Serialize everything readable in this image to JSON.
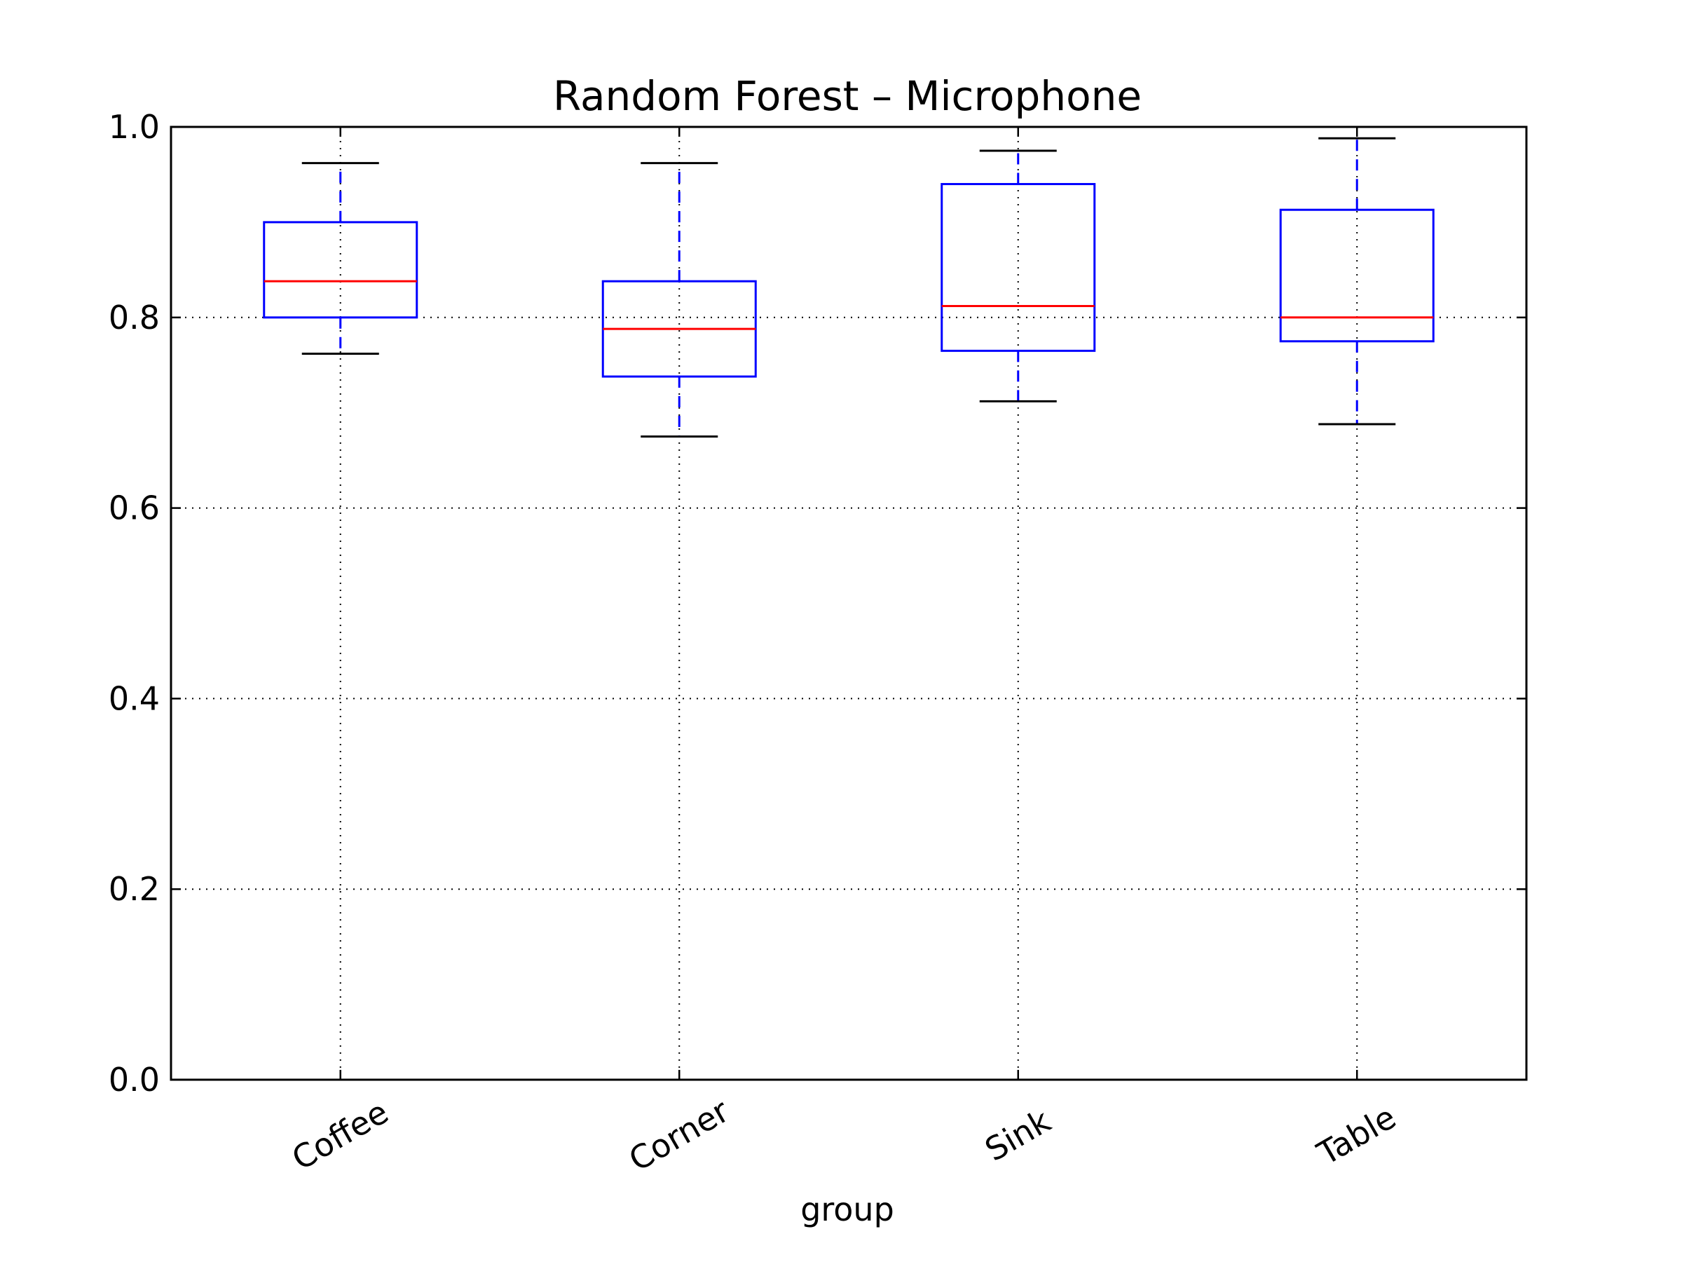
{
  "chart_data": {
    "type": "box",
    "title": "Random Forest – Microphone",
    "xlabel": "group",
    "ylabel": "",
    "ylim": [
      0.0,
      1.0
    ],
    "yticks": [
      "0.0",
      "0.2",
      "0.4",
      "0.6",
      "0.8",
      "1.0"
    ],
    "grid": true,
    "categories": [
      "Coffee",
      "Corner",
      "Sink",
      "Table"
    ],
    "boxes": [
      {
        "whisker_low": 0.762,
        "q1": 0.8,
        "median": 0.838,
        "q3": 0.9,
        "whisker_high": 0.962
      },
      {
        "whisker_low": 0.675,
        "q1": 0.738,
        "median": 0.788,
        "q3": 0.838,
        "whisker_high": 0.962
      },
      {
        "whisker_low": 0.712,
        "q1": 0.765,
        "median": 0.812,
        "q3": 0.94,
        "whisker_high": 0.975
      },
      {
        "whisker_low": 0.688,
        "q1": 0.775,
        "median": 0.8,
        "q3": 0.913,
        "whisker_high": 0.988
      }
    ],
    "colors": {
      "box": "#0000ff",
      "median": "#ff0000",
      "cap": "#000000",
      "grid": "#000000"
    }
  }
}
